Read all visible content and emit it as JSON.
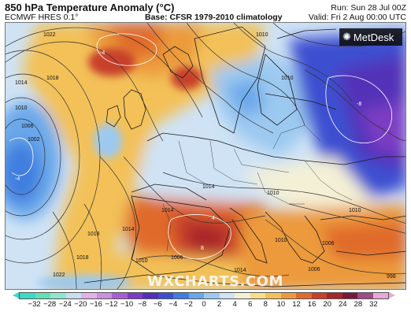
{
  "header": {
    "title": "850 hPa Temperature Anomaly (°C)",
    "model": "ECMWF HRES 0.1°",
    "base": "Base: CFSR 1979-2010 climatology",
    "run": "Run: Sun 28 Jul 00Z",
    "valid": "Valid: Fri 2 Aug 00:00 UTC"
  },
  "brand": {
    "logo_text": "MetDesk",
    "watermark": "WXCHARTS.COM"
  },
  "map": {
    "region": "Europe and North Atlantic",
    "isobar_labels": [
      "1022",
      "1018",
      "1014",
      "1010",
      "1006",
      "1002",
      "1010",
      "1014",
      "1018",
      "1014",
      "1010",
      "1006",
      "1018",
      "1022",
      "1014",
      "1010",
      "1006",
      "1014",
      "1010",
      "1006",
      "1010",
      "998",
      "1010"
    ],
    "contour_labels": [
      "-4",
      "-8",
      "-4",
      "8",
      "4"
    ]
  },
  "legend": {
    "ticks": [
      "−32",
      "−28",
      "−24",
      "−20",
      "−16",
      "−12",
      "−10",
      "−8",
      "−6",
      "−4",
      "−2",
      "0",
      "2",
      "4",
      "6",
      "8",
      "10",
      "12",
      "16",
      "20",
      "24",
      "28",
      "32"
    ],
    "colors": [
      "#3dd9c9",
      "#5fe3b4",
      "#8fe7cf",
      "#c7dfef",
      "#e3b0e8",
      "#c991e0",
      "#a65fd2",
      "#7c3cc4",
      "#5330b8",
      "#3d4fd0",
      "#3f7ee0",
      "#6aa8ea",
      "#9cc9f0",
      "#cfe3f5",
      "#f4f0d6",
      "#f7dd8c",
      "#f3c159",
      "#ec9a3a",
      "#e06a2a",
      "#c8412a",
      "#a8252a",
      "#7a1a3a",
      "#a04a86",
      "#e8a9d6"
    ]
  }
}
